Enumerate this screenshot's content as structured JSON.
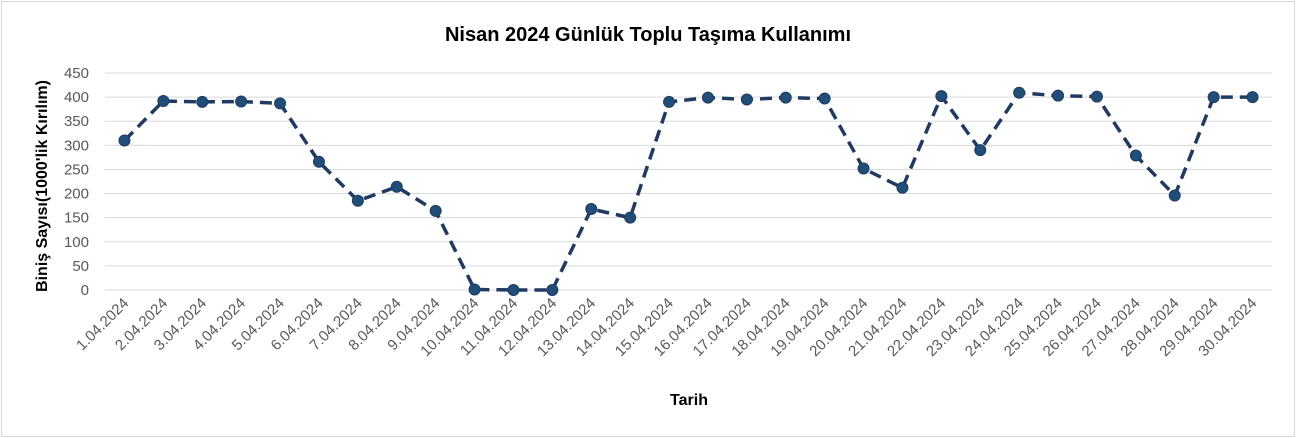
{
  "chart_data": {
    "type": "line",
    "title": "Nisan 2024 Günlük Toplu Taşıma Kullanımı",
    "xlabel": "Tarih",
    "ylabel": "Biniş Sayısı(1000'lik Kırılım)",
    "ylim": [
      0,
      450
    ],
    "yticks": [
      "0",
      "50",
      "100",
      "150",
      "200",
      "250",
      "300",
      "350",
      "400",
      "450"
    ],
    "grid": true,
    "legend": "none",
    "categories": [
      "1.04.2024",
      "2.04.2024",
      "3.04.2024",
      "4.04.2024",
      "5.04.2024",
      "6.04.2024",
      "7.04.2024",
      "8.04.2024",
      "9.04.2024",
      "10.04.2024",
      "11.04.2024",
      "12.04.2024",
      "13.04.2024",
      "14.04.2024",
      "15.04.2024",
      "16.04.2024",
      "17.04.2024",
      "18.04.2024",
      "19.04.2024",
      "20.04.2024",
      "21.04.2024",
      "22.04.2024",
      "23.04.2024",
      "24.04.2024",
      "25.04.2024",
      "26.04.2024",
      "27.04.2024",
      "28.04.2024",
      "29.04.2024",
      "30.04.2024"
    ],
    "series": [
      {
        "color": "#1f3b63",
        "values": [
          310,
          392,
          390,
          391,
          387,
          266,
          185,
          214,
          164,
          1,
          0,
          0,
          168,
          150,
          390,
          399,
          395,
          399,
          397,
          252,
          212,
          402,
          290,
          409,
          403,
          401,
          279,
          196,
          400,
          400
        ]
      }
    ]
  }
}
